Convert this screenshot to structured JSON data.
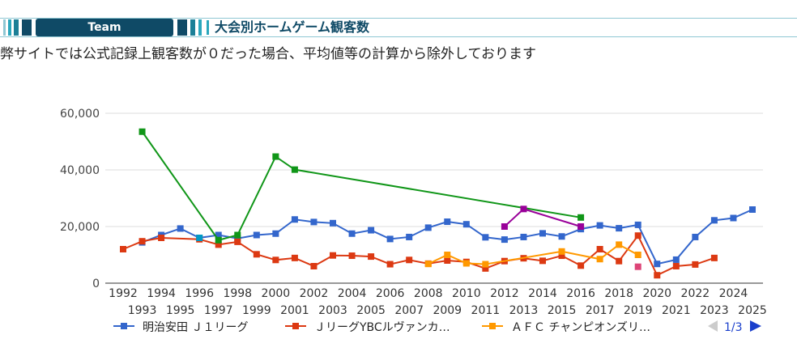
{
  "header": {
    "tab_label": "Team",
    "title": "大会別ホームゲーム観客数"
  },
  "note": "弊サイトでは公式記録上観客数が０だった場合、平均値等の計算から除外しております",
  "pager": {
    "text": "1/3"
  },
  "colors": {
    "header_bg": "#0f4a66",
    "accent": "#2aa7bd",
    "grid": "#dddddd"
  },
  "chart_data": {
    "type": "line",
    "title": "",
    "xlabel": "",
    "ylabel": "",
    "ylim": [
      0,
      60000
    ],
    "yticks": [
      "0",
      "20,000",
      "40,000",
      "60,000"
    ],
    "x": [
      1992,
      1993,
      1994,
      1995,
      1996,
      1997,
      1998,
      1999,
      2000,
      2001,
      2002,
      2003,
      2004,
      2005,
      2006,
      2007,
      2008,
      2009,
      2010,
      2011,
      2012,
      2013,
      2014,
      2015,
      2016,
      2017,
      2018,
      2019,
      2020,
      2021,
      2022,
      2023,
      2024,
      2025
    ],
    "grid": true,
    "legend": "bottom",
    "series": [
      {
        "name": "明治安田 Ｊ１リーグ",
        "color": "#3366cc",
        "show_legend": true,
        "values": [
          null,
          14400,
          17000,
          19300,
          16000,
          17000,
          15800,
          17000,
          17500,
          22500,
          21600,
          21200,
          17500,
          18700,
          15600,
          16300,
          19600,
          21700,
          20800,
          16200,
          15400,
          16300,
          17600,
          16500,
          19100,
          20400,
          19400,
          20600,
          6800,
          8300,
          16300,
          22200,
          23000,
          26000
        ]
      },
      {
        "name": "ＪリーグYBCルヴァンカ…",
        "color": "#dc3912",
        "show_legend": true,
        "values": [
          12000,
          14800,
          16000,
          null,
          15500,
          13600,
          14600,
          10200,
          8200,
          8900,
          6000,
          9800,
          9700,
          9400,
          6700,
          8200,
          6900,
          8000,
          7500,
          5200,
          7800,
          8800,
          7900,
          9700,
          6200,
          12000,
          7800,
          16800,
          2800,
          6000,
          6600,
          8900,
          null,
          null
        ]
      },
      {
        "name": "ＡＦＣ チャンピオンズリ…",
        "color": "#ff9900",
        "show_legend": true,
        "values": [
          null,
          null,
          null,
          null,
          null,
          null,
          null,
          null,
          null,
          null,
          null,
          null,
          null,
          null,
          null,
          null,
          6800,
          10000,
          7000,
          6700,
          null,
          null,
          null,
          11200,
          null,
          8500,
          13600,
          10000,
          null,
          null,
          null,
          null,
          null,
          null
        ]
      },
      {
        "name": "",
        "color": "#109618",
        "show_legend": false,
        "values": [
          null,
          53500,
          null,
          null,
          null,
          15200,
          17000,
          null,
          44700,
          40100,
          null,
          null,
          null,
          null,
          null,
          null,
          null,
          null,
          null,
          null,
          null,
          null,
          null,
          null,
          23200,
          null,
          null,
          null,
          null,
          null,
          null,
          null,
          null,
          null
        ]
      },
      {
        "name": "",
        "color": "#990099",
        "show_legend": false,
        "values": [
          null,
          null,
          null,
          null,
          null,
          null,
          null,
          null,
          null,
          null,
          null,
          null,
          null,
          null,
          null,
          null,
          null,
          null,
          null,
          null,
          20000,
          26200,
          null,
          null,
          20000,
          null,
          null,
          null,
          null,
          null,
          null,
          null,
          null,
          null
        ]
      },
      {
        "name": "",
        "color": "#0099c6",
        "show_legend": false,
        "values": [
          null,
          null,
          null,
          null,
          16000,
          null,
          null,
          null,
          null,
          null,
          null,
          null,
          null,
          null,
          null,
          null,
          null,
          null,
          null,
          null,
          null,
          null,
          null,
          null,
          null,
          null,
          null,
          null,
          null,
          null,
          null,
          null,
          null,
          null
        ]
      },
      {
        "name": "",
        "color": "#dd4477",
        "show_legend": false,
        "values": [
          null,
          null,
          null,
          null,
          null,
          null,
          null,
          null,
          null,
          null,
          null,
          null,
          null,
          null,
          null,
          null,
          null,
          null,
          null,
          null,
          null,
          null,
          null,
          null,
          null,
          null,
          null,
          5800,
          null,
          null,
          null,
          null,
          null,
          null
        ]
      }
    ]
  }
}
